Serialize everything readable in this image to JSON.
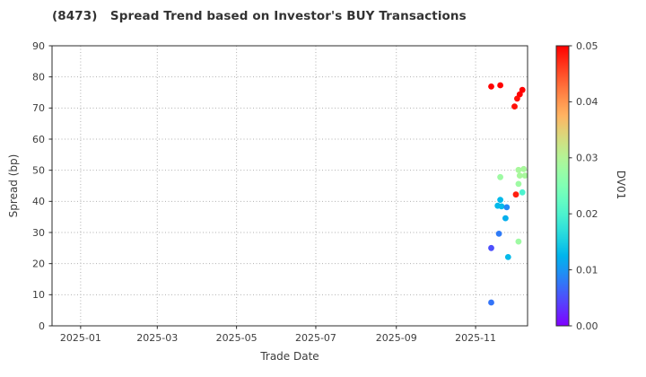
{
  "title": "(8473)   Spread Trend based on Investor's BUY Transactions",
  "chart_data": {
    "type": "scatter",
    "title": "(8473)   Spread Trend based on Investor's BUY Transactions",
    "xlabel": "Trade Date",
    "ylabel": "Spread (bp)",
    "grid": true,
    "grid_style": "dotted",
    "x_axis": {
      "min_date": "2024-12-10",
      "max_date": "2025-12-11",
      "ticks": [
        {
          "label": "2025-01",
          "date": "2025-01-01"
        },
        {
          "label": "2025-03",
          "date": "2025-03-01"
        },
        {
          "label": "2025-05",
          "date": "2025-05-01"
        },
        {
          "label": "2025-07",
          "date": "2025-07-01"
        },
        {
          "label": "2025-09",
          "date": "2025-09-01"
        },
        {
          "label": "2025-11",
          "date": "2025-11-01"
        }
      ]
    },
    "y_axis": {
      "min": 0,
      "max": 90,
      "ticks": [
        0,
        10,
        20,
        30,
        40,
        50,
        60,
        70,
        80,
        90
      ]
    },
    "colorbar": {
      "label": "DV01",
      "colormap": "rainbow",
      "min": 0.0,
      "max": 0.05,
      "ticks": [
        {
          "label": "0.00",
          "value": 0.0
        },
        {
          "label": "0.01",
          "value": 0.01
        },
        {
          "label": "0.02",
          "value": 0.02
        },
        {
          "label": "0.03",
          "value": 0.03
        },
        {
          "label": "0.04",
          "value": 0.04
        },
        {
          "label": "0.05",
          "value": 0.05
        }
      ]
    },
    "points": [
      {
        "date": "2025-11-13",
        "spread_bp": 76.9,
        "dv01": 0.05
      },
      {
        "date": "2025-11-20",
        "spread_bp": 77.3,
        "dv01": 0.05
      },
      {
        "date": "2025-12-07",
        "spread_bp": 75.8,
        "dv01": 0.05
      },
      {
        "date": "2025-12-05",
        "spread_bp": 74.4,
        "dv01": 0.05
      },
      {
        "date": "2025-12-03",
        "spread_bp": 73.0,
        "dv01": 0.049
      },
      {
        "date": "2025-12-01",
        "spread_bp": 70.5,
        "dv01": 0.049
      },
      {
        "date": "2025-12-04",
        "spread_bp": 50.1,
        "dv01": 0.029
      },
      {
        "date": "2025-12-08",
        "spread_bp": 50.4,
        "dv01": 0.029
      },
      {
        "date": "2025-12-05",
        "spread_bp": 48.3,
        "dv01": 0.029
      },
      {
        "date": "2025-12-09",
        "spread_bp": 48.3,
        "dv01": 0.029
      },
      {
        "date": "2025-11-20",
        "spread_bp": 47.8,
        "dv01": 0.028
      },
      {
        "date": "2025-12-04",
        "spread_bp": 45.6,
        "dv01": 0.028
      },
      {
        "date": "2025-12-02",
        "spread_bp": 42.2,
        "dv01": 0.048
      },
      {
        "date": "2025-12-07",
        "spread_bp": 42.9,
        "dv01": 0.02
      },
      {
        "date": "2025-11-20",
        "spread_bp": 40.5,
        "dv01": 0.013
      },
      {
        "date": "2025-11-18",
        "spread_bp": 38.6,
        "dv01": 0.013
      },
      {
        "date": "2025-11-21",
        "spread_bp": 38.4,
        "dv01": 0.013
      },
      {
        "date": "2025-11-25",
        "spread_bp": 38.1,
        "dv01": 0.009
      },
      {
        "date": "2025-11-24",
        "spread_bp": 34.6,
        "dv01": 0.012
      },
      {
        "date": "2025-11-19",
        "spread_bp": 29.6,
        "dv01": 0.008
      },
      {
        "date": "2025-11-13",
        "spread_bp": 25.0,
        "dv01": 0.005
      },
      {
        "date": "2025-12-04",
        "spread_bp": 27.1,
        "dv01": 0.028
      },
      {
        "date": "2025-11-26",
        "spread_bp": 22.1,
        "dv01": 0.013
      },
      {
        "date": "2025-11-13",
        "spread_bp": 7.5,
        "dv01": 0.0075
      }
    ]
  },
  "colors": {
    "background": "#ffffff",
    "spine": "#2b2b2b",
    "grid": "#b0b0b0",
    "title_text": "#333333",
    "tick_text": "#3d3d3d"
  }
}
